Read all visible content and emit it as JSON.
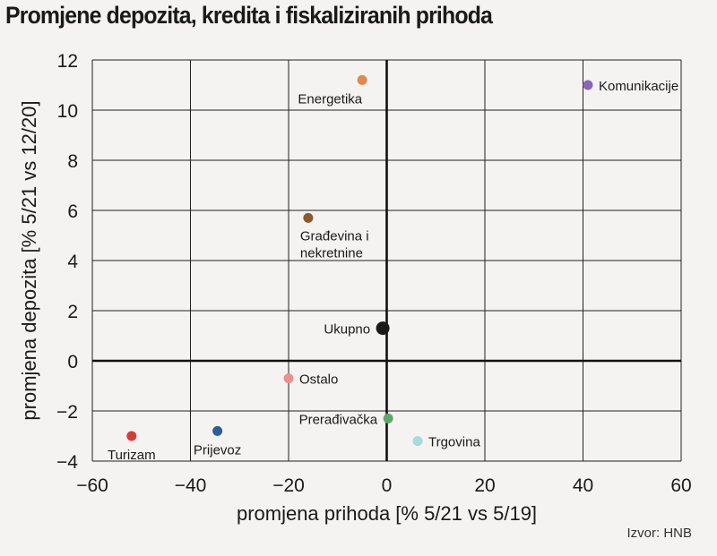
{
  "chart_data": {
    "type": "scatter",
    "title": "Promjene depozita, kredita i fiskaliziranih prihoda",
    "xlabel": "promjena prihoda [% 5/21 vs 5/19]",
    "ylabel": "promjena depozita [% 5/21 vs 12/20]",
    "xlim": [
      -60,
      60
    ],
    "ylim": [
      -4,
      12
    ],
    "xticks": [
      -60,
      -40,
      -20,
      0,
      20,
      40,
      60
    ],
    "yticks": [
      -4,
      -2,
      0,
      2,
      4,
      6,
      8,
      10,
      12
    ],
    "xtick_labels": [
      "−60",
      "−40",
      "−20",
      "0",
      "20",
      "40",
      "60"
    ],
    "ytick_labels": [
      "−4",
      "−2",
      "0",
      "2",
      "4",
      "6",
      "8",
      "10",
      "12"
    ],
    "grid": true,
    "points": [
      {
        "label": [
          "Energetika"
        ],
        "x": -5,
        "y": 11.2,
        "color": "#e08a4b",
        "label_pos": "below-left"
      },
      {
        "label": [
          "Komunikacije"
        ],
        "x": 41,
        "y": 11.0,
        "color": "#8a66b8",
        "label_pos": "right"
      },
      {
        "label": [
          "Građevina i",
          "nekretnine"
        ],
        "x": -16,
        "y": 5.7,
        "color": "#8a5a2e",
        "label_pos": "below"
      },
      {
        "label": [
          "Ukupno"
        ],
        "x": -0.8,
        "y": 1.3,
        "color": "#1a1a1a",
        "label_pos": "left",
        "big": true
      },
      {
        "label": [
          "Ostalo"
        ],
        "x": -20,
        "y": -0.7,
        "color": "#ee8e8e",
        "label_pos": "right"
      },
      {
        "label": [
          "Prerađivačka"
        ],
        "x": 0.3,
        "y": -2.3,
        "color": "#5fa86a",
        "label_pos": "left"
      },
      {
        "label": [
          "Trgovina"
        ],
        "x": 6.3,
        "y": -3.2,
        "color": "#a8d9e2",
        "label_pos": "right"
      },
      {
        "label": [
          "Prijevoz"
        ],
        "x": -34.5,
        "y": -2.8,
        "color": "#2f5d95",
        "label_pos": "below"
      },
      {
        "label": [
          "Turizam"
        ],
        "x": -52,
        "y": -3.0,
        "color": "#d63c3c",
        "label_pos": "below"
      }
    ]
  },
  "source": "Izvor: HNB"
}
